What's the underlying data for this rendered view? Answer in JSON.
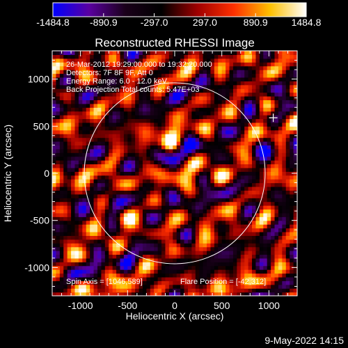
{
  "chart_data": {
    "type": "heatmap",
    "title": "Reconstructed RHESSI Image",
    "xlabel": "Heliocentric X (arcsec)",
    "ylabel": "Heliocentric Y (arcsec)",
    "xlim": [
      -1300,
      1300
    ],
    "ylim": [
      -1300,
      1300
    ],
    "x_ticks": [
      "-1000",
      "-500",
      "0",
      "500",
      "1000"
    ],
    "y_ticks": [
      "-1000",
      "-500",
      "0",
      "500",
      "1000"
    ],
    "colorbar": {
      "min": -1484.8,
      "max": 1484.8,
      "tick_labels": [
        "-1484.8",
        "-890.9",
        "-297.0",
        "297.0",
        "890.9",
        "1484.8"
      ],
      "colors": [
        "#0000ff",
        "#5a00a0",
        "#1a001a",
        "#000000",
        "#a00000",
        "#ff3000",
        "#ffc000",
        "#ffffff"
      ]
    },
    "solar_limb_radius_arcsec": 960,
    "spin_axis_marker": {
      "x": 1046,
      "y": 589
    },
    "flare_position": {
      "x": -42,
      "y": 312
    },
    "grid": false,
    "info_lines": [
      "26-Mar-2012 19:29:00.000 to 19:32:20.000",
      "Detectors: 7F 8F 9F, Att 0",
      "Energy Range: 6.0 - 12.0 keV",
      "Back Projection    Total counts: 5.47E+03"
    ],
    "spin_axis_label": "Spin Axis = [1046,589]",
    "flare_position_label": "Flare Position = [-42,312]"
  },
  "footer": {
    "date": "9-May-2022 14:15"
  }
}
